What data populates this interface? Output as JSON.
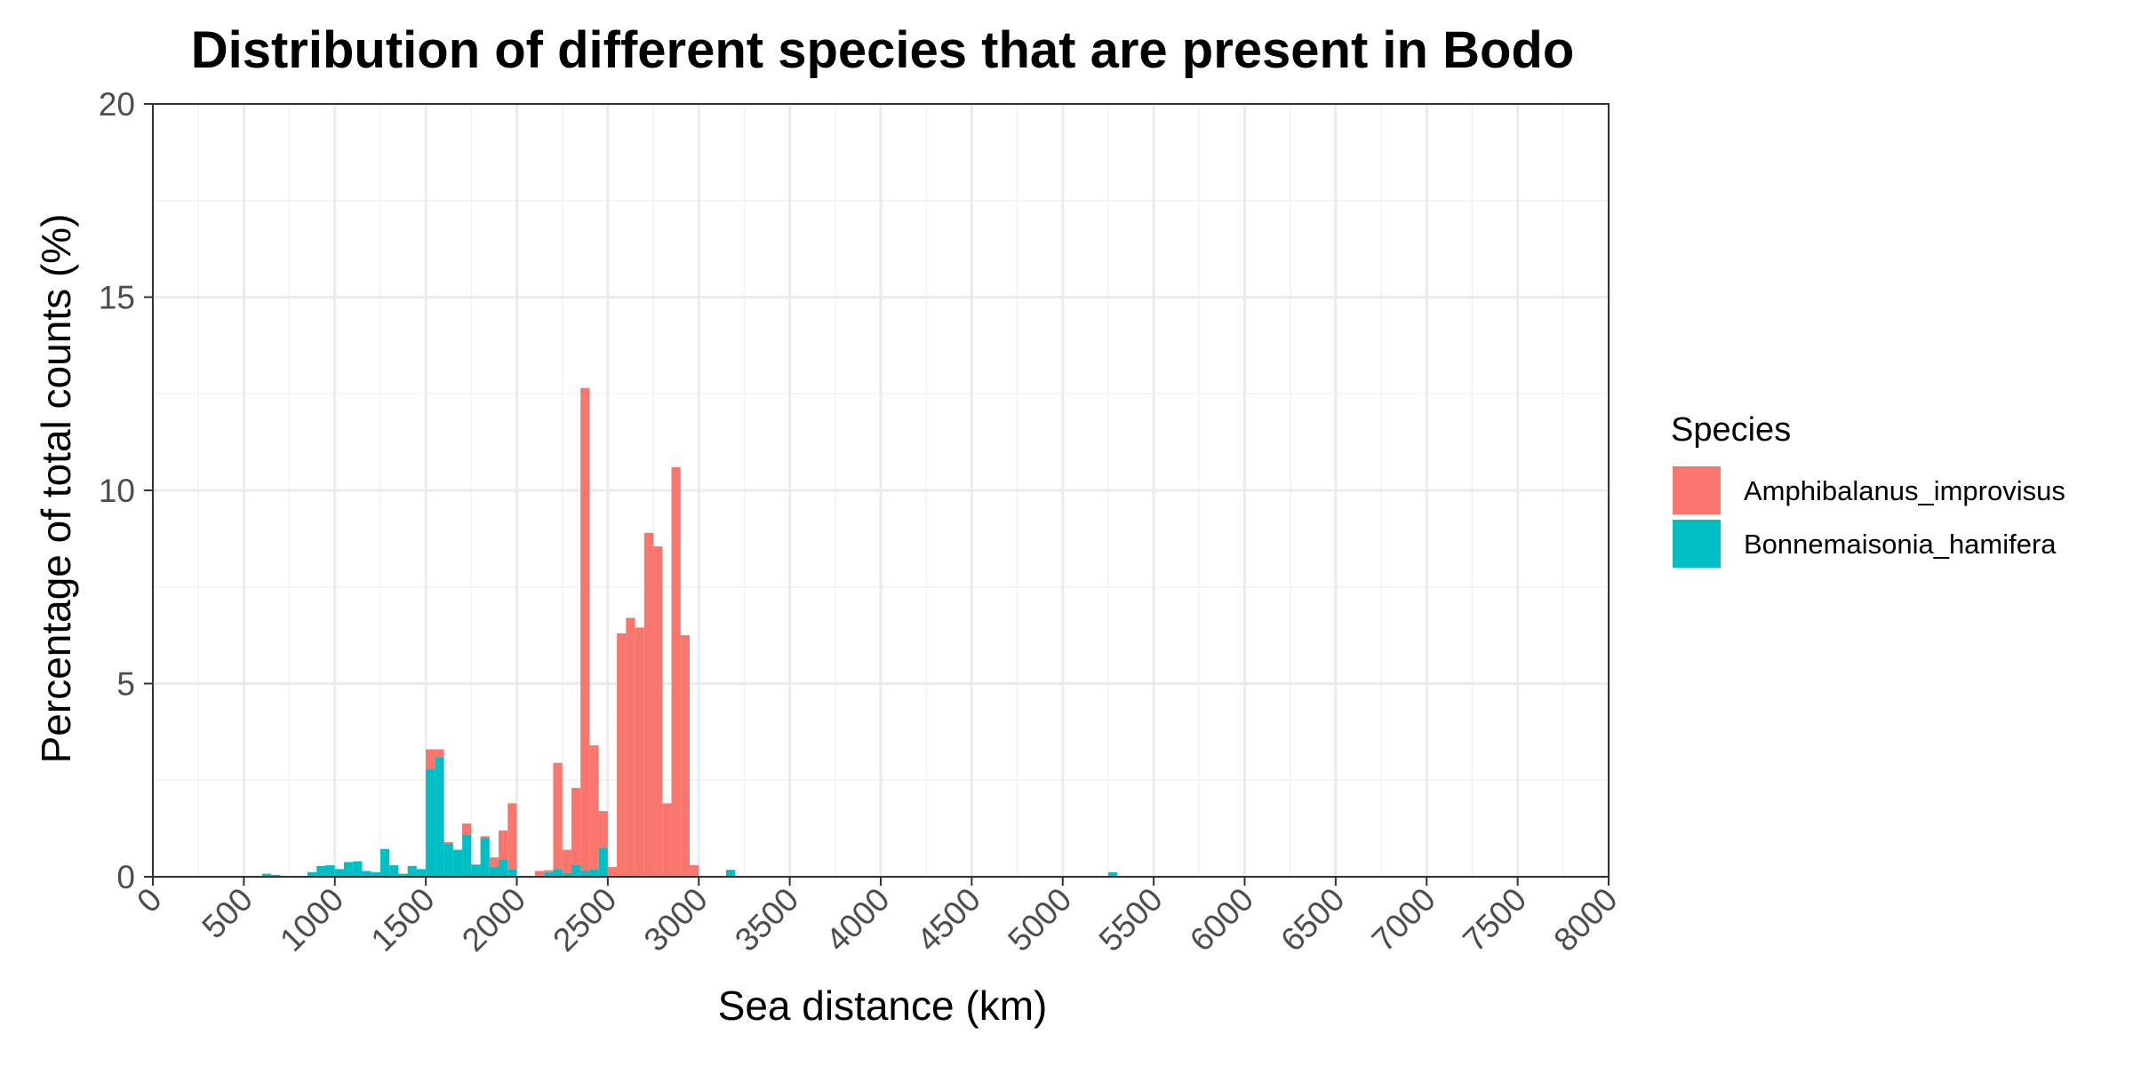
{
  "chart_data": {
    "type": "bar",
    "subtype": "stacked-histogram",
    "title": "Distribution of different species that are present in Bodo",
    "xlabel": "Sea distance (km)",
    "ylabel": "Percentage of total counts (%)",
    "xlim": [
      0,
      8000
    ],
    "ylim": [
      0,
      20
    ],
    "bin_width": 50,
    "x_ticks": [
      0,
      500,
      1000,
      1500,
      2000,
      2500,
      3000,
      3500,
      4000,
      4500,
      5000,
      5500,
      6000,
      6500,
      7000,
      7500,
      8000
    ],
    "x_tick_labels": [
      "0",
      "500",
      "1000",
      "1500",
      "2000",
      "2500",
      "3000",
      "3500",
      "4000",
      "4500",
      "5000",
      "5500",
      "6000",
      "6500",
      "7000",
      "7500",
      "8000"
    ],
    "y_ticks": [
      0,
      5,
      10,
      15,
      20
    ],
    "y_tick_labels": [
      "0",
      "5",
      "10",
      "15",
      "20"
    ],
    "grid": true,
    "legend": {
      "title": "Species",
      "placement": "right",
      "entries": [
        {
          "name": "Amphibalanus_improvisus",
          "color": "#F8766D"
        },
        {
          "name": "Bonnemaisonia_hamifera",
          "color": "#00BFC4"
        }
      ]
    },
    "series": [
      {
        "name": "Bonnemaisonia_hamifera",
        "color": "#00BFC4",
        "stack_order": 0,
        "points": [
          [
            600,
            0.08
          ],
          [
            650,
            0.05
          ],
          [
            850,
            0.12
          ],
          [
            900,
            0.28
          ],
          [
            950,
            0.3
          ],
          [
            1000,
            0.2
          ],
          [
            1050,
            0.38
          ],
          [
            1100,
            0.4
          ],
          [
            1150,
            0.15
          ],
          [
            1200,
            0.12
          ],
          [
            1250,
            0.72
          ],
          [
            1300,
            0.3
          ],
          [
            1350,
            0.08
          ],
          [
            1400,
            0.28
          ],
          [
            1450,
            0.2
          ],
          [
            1500,
            2.8
          ],
          [
            1550,
            3.1
          ],
          [
            1600,
            0.85
          ],
          [
            1650,
            0.7
          ],
          [
            1700,
            1.1
          ],
          [
            1750,
            0.3
          ],
          [
            1800,
            1.0
          ],
          [
            1850,
            0.25
          ],
          [
            1900,
            0.45
          ],
          [
            1950,
            0.2
          ],
          [
            2150,
            0.12
          ],
          [
            2200,
            0.2
          ],
          [
            2250,
            0.1
          ],
          [
            2300,
            0.3
          ],
          [
            2350,
            0.15
          ],
          [
            2400,
            0.2
          ],
          [
            2450,
            0.75
          ],
          [
            3150,
            0.18
          ],
          [
            5250,
            0.12
          ]
        ]
      },
      {
        "name": "Amphibalanus_improvisus",
        "color": "#F8766D",
        "stack_order": 1,
        "points": [
          [
            1500,
            0.5
          ],
          [
            1550,
            0.2
          ],
          [
            1600,
            0.05
          ],
          [
            1700,
            0.28
          ],
          [
            1750,
            0.02
          ],
          [
            1800,
            0.05
          ],
          [
            1850,
            0.25
          ],
          [
            1900,
            0.75
          ],
          [
            1950,
            1.7
          ],
          [
            2100,
            0.15
          ],
          [
            2150,
            0.05
          ],
          [
            2200,
            2.75
          ],
          [
            2250,
            0.6
          ],
          [
            2300,
            2.0
          ],
          [
            2350,
            12.5
          ],
          [
            2400,
            3.2
          ],
          [
            2450,
            0.95
          ],
          [
            2500,
            0.25
          ],
          [
            2550,
            6.3
          ],
          [
            2600,
            6.7
          ],
          [
            2650,
            6.45
          ],
          [
            2700,
            8.9
          ],
          [
            2750,
            8.55
          ],
          [
            2800,
            1.9
          ],
          [
            2850,
            10.6
          ],
          [
            2900,
            6.25
          ],
          [
            2950,
            0.3
          ]
        ]
      }
    ]
  }
}
